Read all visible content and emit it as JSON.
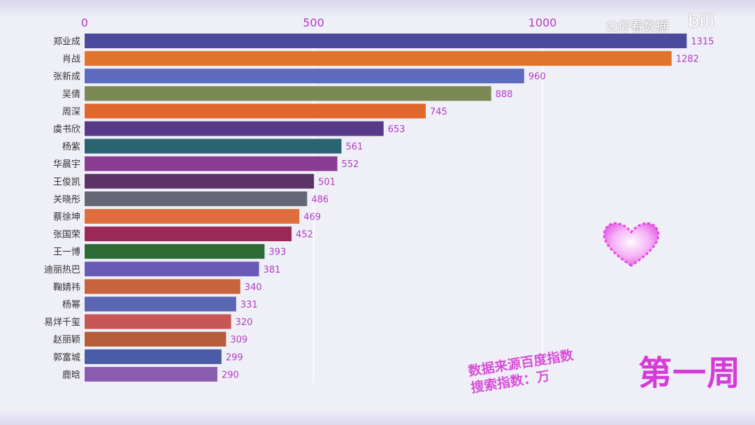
{
  "watermark": "公仔看数据",
  "logo": "bili",
  "period_label": "第一周",
  "source_line1": "数据来源百度指数",
  "source_line2": "搜索指数：万",
  "colors": {
    "accent": "#d63ad8",
    "tick": "#b33cc0",
    "bars": [
      "#4b4a9c",
      "#e0742c",
      "#5e6cc0",
      "#7a8a52",
      "#e0682c",
      "#563a88",
      "#2a6470",
      "#8a3c92",
      "#5c3366",
      "#666677",
      "#e06e3c",
      "#992a56",
      "#2c6a36",
      "#6a5ab8",
      "#c7643e",
      "#5a66b2",
      "#c85656",
      "#b55c3a",
      "#4a5ca8",
      "#8a5cb0"
    ]
  },
  "chart_data": {
    "type": "bar",
    "orientation": "horizontal",
    "title": "",
    "xlabel": "",
    "ylabel": "",
    "xlim": [
      0,
      1315
    ],
    "xticks": [
      0,
      500,
      1000
    ],
    "grid": true,
    "legend": "none",
    "categories": [
      "郑业成",
      "肖战",
      "张新成",
      "吴倩",
      "周深",
      "虞书欣",
      "杨紫",
      "华晨宇",
      "王俊凯",
      "关晓彤",
      "蔡徐坤",
      "张国荣",
      "王一博",
      "迪丽热巴",
      "鞠婧祎",
      "杨幂",
      "易烊千玺",
      "赵丽颖",
      "郭富城",
      "鹿晗"
    ],
    "values": [
      1315,
      1282,
      960,
      888,
      745,
      653,
      561,
      552,
      501,
      486,
      469,
      452,
      393,
      381,
      340,
      331,
      320,
      309,
      299,
      290
    ]
  }
}
